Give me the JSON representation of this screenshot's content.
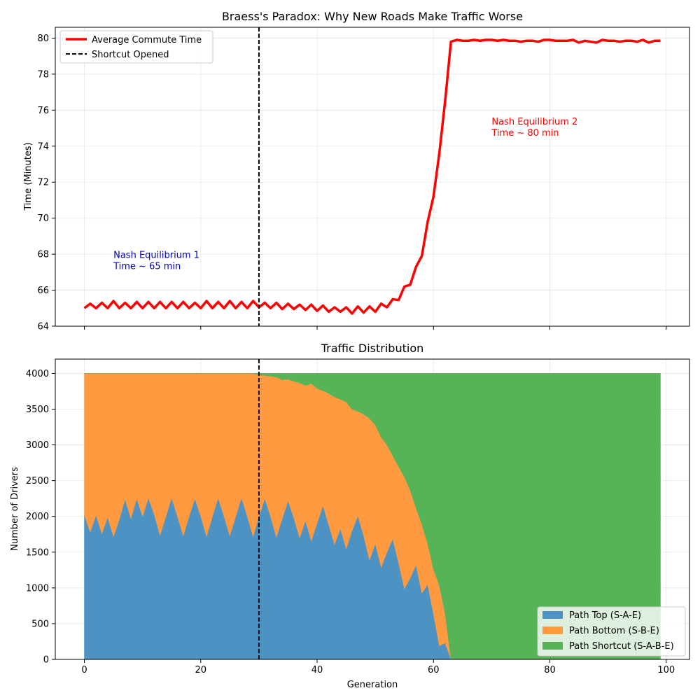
{
  "chart_data": [
    {
      "type": "line",
      "title": "Braess's Paradox: Why New Roads Make Traffic Worse",
      "xlabel": "",
      "ylabel": "Time (Minutes)",
      "xlim": [
        -5,
        104
      ],
      "ylim": [
        64,
        80.6
      ],
      "xticks": [
        0,
        20,
        40,
        60,
        80,
        100
      ],
      "yticks": [
        64,
        66,
        68,
        70,
        72,
        74,
        76,
        78,
        80
      ],
      "grid": true,
      "legend_position": "top-left",
      "series": [
        {
          "name": "Average Commute Time",
          "color": "#ff0000",
          "x": [
            0,
            1,
            2,
            3,
            4,
            5,
            6,
            7,
            8,
            9,
            10,
            11,
            12,
            13,
            14,
            15,
            16,
            17,
            18,
            19,
            20,
            21,
            22,
            23,
            24,
            25,
            26,
            27,
            28,
            29,
            30,
            31,
            32,
            33,
            34,
            35,
            36,
            37,
            38,
            39,
            40,
            41,
            42,
            43,
            44,
            45,
            46,
            47,
            48,
            49,
            50,
            51,
            52,
            53,
            54,
            55,
            56,
            57,
            58,
            59,
            60,
            61,
            62,
            63,
            64,
            65,
            66,
            67,
            68,
            69,
            70,
            71,
            72,
            73,
            74,
            75,
            76,
            77,
            78,
            79,
            80,
            81,
            82,
            83,
            84,
            85,
            86,
            87,
            88,
            89,
            90,
            91,
            92,
            93,
            94,
            95,
            96,
            97,
            98,
            99
          ],
          "values": [
            65.0,
            65.25,
            65.0,
            65.3,
            65.0,
            65.4,
            65.0,
            65.3,
            65.0,
            65.35,
            65.0,
            65.35,
            65.0,
            65.35,
            65.0,
            65.35,
            65.0,
            65.35,
            65.0,
            65.3,
            65.0,
            65.4,
            65.0,
            65.35,
            65.0,
            65.4,
            65.0,
            65.35,
            65.0,
            65.4,
            65.05,
            65.3,
            65.0,
            65.3,
            64.95,
            65.25,
            64.95,
            65.2,
            64.9,
            65.2,
            64.85,
            65.15,
            64.8,
            65.05,
            64.8,
            65.05,
            64.7,
            65.1,
            64.75,
            65.1,
            64.8,
            65.25,
            65.05,
            65.5,
            65.45,
            66.2,
            66.3,
            67.3,
            67.9,
            69.8,
            71.2,
            73.6,
            76.5,
            79.8,
            79.9,
            79.85,
            79.85,
            79.9,
            79.85,
            79.9,
            79.9,
            79.85,
            79.9,
            79.85,
            79.85,
            79.8,
            79.85,
            79.85,
            79.8,
            79.9,
            79.9,
            79.85,
            79.85,
            79.85,
            79.9,
            79.75,
            79.85,
            79.8,
            79.75,
            79.9,
            79.85,
            79.85,
            79.8,
            79.85,
            79.85,
            79.8,
            79.9,
            79.75,
            79.85,
            79.85
          ]
        },
        {
          "name": "Shortcut Opened",
          "color": "#000000",
          "style": "dashed",
          "x_value": 30
        }
      ],
      "annotations": [
        {
          "line1": "Nash Equilibrium 1",
          "line2": "Time ~ 65 min",
          "x": 5,
          "y": 67.8,
          "color": "#0000cc"
        },
        {
          "line1": "Nash Equilibrium 2",
          "line2": "Time ~ 80 min",
          "x": 70,
          "y": 75.2,
          "color": "#ff0000"
        }
      ]
    },
    {
      "type": "area",
      "stacked": true,
      "title": "Traffic Distribution",
      "xlabel": "Generation",
      "ylabel": "Number of Drivers",
      "xlim": [
        -5,
        104
      ],
      "ylim": [
        0,
        4200
      ],
      "xticks": [
        0,
        20,
        40,
        60,
        80,
        100
      ],
      "yticks": [
        0,
        500,
        1000,
        1500,
        2000,
        2500,
        3000,
        3500,
        4000
      ],
      "grid": true,
      "legend_position": "bottom-right",
      "x": [
        0,
        1,
        2,
        3,
        4,
        5,
        6,
        7,
        8,
        9,
        10,
        11,
        12,
        13,
        14,
        15,
        16,
        17,
        18,
        19,
        20,
        21,
        22,
        23,
        24,
        25,
        26,
        27,
        28,
        29,
        30,
        31,
        32,
        33,
        34,
        35,
        36,
        37,
        38,
        39,
        40,
        41,
        42,
        43,
        44,
        45,
        46,
        47,
        48,
        49,
        50,
        51,
        52,
        53,
        54,
        55,
        56,
        57,
        58,
        59,
        60,
        61,
        62,
        63,
        64,
        65,
        66,
        67,
        68,
        69,
        70,
        71,
        72,
        73,
        74,
        75,
        76,
        77,
        78,
        79,
        80,
        81,
        82,
        83,
        84,
        85,
        86,
        87,
        88,
        89,
        90,
        91,
        92,
        93,
        94,
        95,
        96,
        97,
        98,
        99
      ],
      "series": [
        {
          "name": "Path Top (S-A-E)",
          "color": "#4c93c3",
          "values": [
            2020,
            1780,
            2020,
            1760,
            1990,
            1720,
            1960,
            2240,
            1970,
            2250,
            2000,
            2260,
            2030,
            1740,
            2000,
            2260,
            2000,
            1730,
            2000,
            2250,
            2000,
            1720,
            2000,
            2260,
            2000,
            1730,
            2000,
            2260,
            2000,
            1720,
            2000,
            2250,
            2000,
            1710,
            1970,
            2220,
            1980,
            1700,
            1940,
            1660,
            1910,
            2150,
            1880,
            1610,
            1830,
            1550,
            1800,
            2010,
            1730,
            1390,
            1620,
            1290,
            1500,
            1690,
            1350,
            990,
            1140,
            1320,
            930,
            1050,
            640,
            190,
            230,
            10,
            10,
            10,
            10,
            10,
            10,
            10,
            10,
            10,
            10,
            10,
            10,
            10,
            10,
            10,
            10,
            10,
            10,
            10,
            10,
            10,
            10,
            10,
            10,
            10,
            10,
            10,
            10,
            10,
            10,
            10,
            10,
            10,
            10,
            10,
            10,
            10
          ]
        },
        {
          "name": "Path Bottom (S-B-E)",
          "color": "#ff9a40",
          "values": [
            1980,
            2220,
            1980,
            2240,
            2010,
            2280,
            2040,
            1760,
            2030,
            1750,
            2000,
            1740,
            1970,
            2260,
            2000,
            1740,
            2000,
            2270,
            2000,
            1750,
            2000,
            2280,
            2000,
            1740,
            2000,
            2270,
            2000,
            1740,
            2000,
            2280,
            1980,
            1720,
            1960,
            2240,
            1940,
            1700,
            1910,
            2170,
            1890,
            2200,
            1880,
            1610,
            1840,
            2060,
            1810,
            2050,
            1700,
            1460,
            1700,
            1980,
            1660,
            1820,
            1500,
            1160,
            1350,
            1560,
            1230,
            800,
            960,
            570,
            620,
            850,
            410,
            0,
            0,
            0,
            0,
            0,
            0,
            0,
            0,
            0,
            0,
            0,
            0,
            0,
            0,
            0,
            0,
            0,
            0,
            0,
            0,
            0,
            0,
            0,
            0,
            0,
            0,
            0,
            0,
            0,
            0,
            0,
            0,
            0,
            0,
            0,
            0,
            0
          ]
        },
        {
          "name": "Path Shortcut (S-A-B-E)",
          "color": "#56b356",
          "values": [
            0,
            0,
            0,
            0,
            0,
            0,
            0,
            0,
            0,
            0,
            0,
            0,
            0,
            0,
            0,
            0,
            0,
            0,
            0,
            0,
            0,
            0,
            0,
            0,
            0,
            0,
            0,
            0,
            0,
            0,
            20,
            30,
            40,
            50,
            90,
            80,
            110,
            130,
            170,
            140,
            210,
            240,
            280,
            330,
            360,
            400,
            500,
            530,
            570,
            630,
            720,
            890,
            1000,
            1150,
            1300,
            1450,
            1630,
            1880,
            2110,
            2380,
            2740,
            2960,
            3360,
            3990,
            3990,
            3990,
            3990,
            3990,
            3990,
            3990,
            3990,
            3990,
            3990,
            3990,
            3990,
            3990,
            3990,
            3990,
            3990,
            3990,
            3990,
            3990,
            3990,
            3990,
            3990,
            3990,
            3990,
            3990,
            3990,
            3990,
            3990,
            3990,
            3990,
            3990,
            3990,
            3990,
            3990,
            3990,
            3990,
            3990
          ]
        }
      ],
      "vline": {
        "x_value": 30,
        "color": "#000000",
        "style": "dashed"
      }
    }
  ]
}
